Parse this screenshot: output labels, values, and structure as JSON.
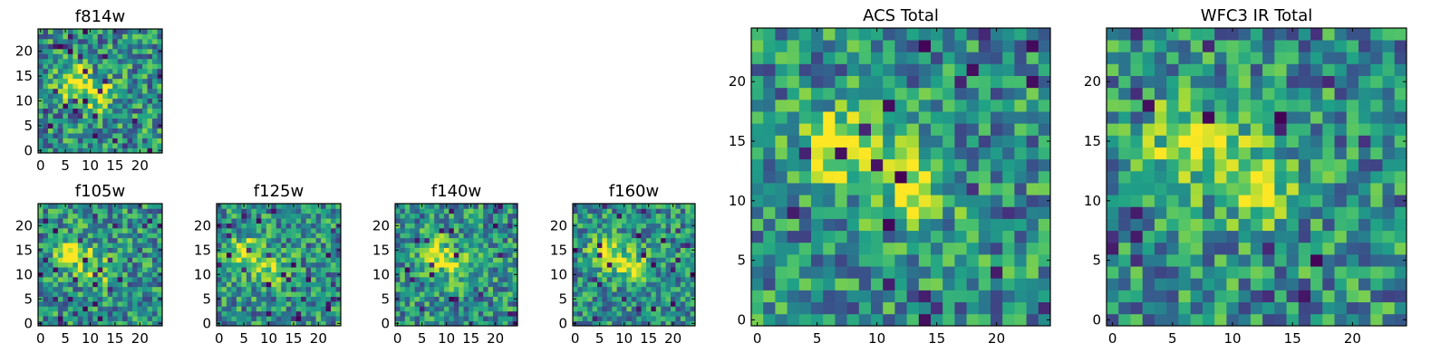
{
  "chart_data": [
    {
      "id": "f814w",
      "type": "heatmap",
      "title": "f814w",
      "xlim": [
        0,
        25
      ],
      "ylim": [
        0,
        25
      ],
      "xticks": [
        "0",
        "5",
        "10",
        "15",
        "20"
      ],
      "yticks": [
        "0",
        "5",
        "10",
        "15",
        "20"
      ],
      "colormap": "viridis",
      "grid_size": [
        25,
        25
      ],
      "features": [
        {
          "x": 7,
          "y": 14.5,
          "strength": 0.95
        },
        {
          "x": 12,
          "y": 11.5,
          "strength": 0.75
        }
      ],
      "noise_level": 0.32,
      "noise_seed": 11
    },
    {
      "id": "f105w",
      "type": "heatmap",
      "title": "f105w",
      "xlim": [
        0,
        25
      ],
      "ylim": [
        0,
        25
      ],
      "xticks": [
        "0",
        "5",
        "10",
        "15",
        "20"
      ],
      "yticks": [
        "0",
        "5",
        "10",
        "15",
        "20"
      ],
      "colormap": "viridis",
      "grid_size": [
        25,
        25
      ],
      "features": [
        {
          "x": 7,
          "y": 15,
          "strength": 0.85
        },
        {
          "x": 12,
          "y": 11.5,
          "strength": 0.6
        }
      ],
      "noise_level": 0.3,
      "noise_seed": 23
    },
    {
      "id": "f125w",
      "type": "heatmap",
      "title": "f125w",
      "xlim": [
        0,
        25
      ],
      "ylim": [
        0,
        25
      ],
      "xticks": [
        "0",
        "5",
        "10",
        "15",
        "20"
      ],
      "yticks": [
        "0",
        "5",
        "10",
        "15",
        "20"
      ],
      "colormap": "viridis",
      "grid_size": [
        25,
        25
      ],
      "features": [
        {
          "x": 6,
          "y": 15,
          "strength": 0.9
        },
        {
          "x": 11,
          "y": 12,
          "strength": 0.65
        }
      ],
      "noise_level": 0.3,
      "noise_seed": 37
    },
    {
      "id": "f140w",
      "type": "heatmap",
      "title": "f140w",
      "xlim": [
        0,
        25
      ],
      "ylim": [
        0,
        25
      ],
      "xticks": [
        "0",
        "5",
        "10",
        "15",
        "20"
      ],
      "yticks": [
        "0",
        "5",
        "10",
        "15",
        "20"
      ],
      "colormap": "viridis",
      "grid_size": [
        25,
        25
      ],
      "features": [
        {
          "x": 8,
          "y": 15,
          "strength": 0.85
        },
        {
          "x": 13,
          "y": 12,
          "strength": 0.7
        }
      ],
      "noise_level": 0.3,
      "noise_seed": 41
    },
    {
      "id": "f160w",
      "type": "heatmap",
      "title": "f160w",
      "xlim": [
        0,
        25
      ],
      "ylim": [
        0,
        25
      ],
      "xticks": [
        "0",
        "5",
        "10",
        "15",
        "20"
      ],
      "yticks": [
        "0",
        "5",
        "10",
        "15",
        "20"
      ],
      "colormap": "viridis",
      "grid_size": [
        25,
        25
      ],
      "features": [
        {
          "x": 7,
          "y": 15,
          "strength": 0.85
        },
        {
          "x": 12,
          "y": 12,
          "strength": 0.75
        }
      ],
      "noise_level": 0.28,
      "noise_seed": 53
    },
    {
      "id": "acs-total",
      "type": "heatmap",
      "title": "ACS Total",
      "xlim": [
        0,
        25
      ],
      "ylim": [
        0,
        25
      ],
      "xticks": [
        "0",
        "5",
        "10",
        "15",
        "20"
      ],
      "yticks": [
        "0",
        "5",
        "10",
        "15",
        "20"
      ],
      "colormap": "viridis",
      "grid_size": [
        25,
        25
      ],
      "features": [
        {
          "x": 7.5,
          "y": 15,
          "strength": 0.95
        },
        {
          "x": 13.5,
          "y": 11.5,
          "strength": 0.75
        }
      ],
      "noise_level": 0.3,
      "noise_seed": 67
    },
    {
      "id": "wfc3-ir-total",
      "type": "heatmap",
      "title": "WFC3 IR Total",
      "xlim": [
        0,
        25
      ],
      "ylim": [
        0,
        25
      ],
      "xticks": [
        "0",
        "5",
        "10",
        "15",
        "20"
      ],
      "yticks": [
        "0",
        "5",
        "10",
        "15",
        "20"
      ],
      "colormap": "viridis",
      "grid_size": [
        25,
        25
      ],
      "features": [
        {
          "x": 7,
          "y": 15.5,
          "strength": 0.9
        },
        {
          "x": 12.5,
          "y": 12,
          "strength": 0.7
        }
      ],
      "noise_level": 0.3,
      "noise_seed": 79
    }
  ],
  "colors": {
    "viridis": [
      "#440154",
      "#46317e",
      "#365a8c",
      "#277e8e",
      "#1fa187",
      "#49c16d",
      "#9fd938",
      "#fde724"
    ],
    "axis": "#000000",
    "background": "#ffffff"
  }
}
